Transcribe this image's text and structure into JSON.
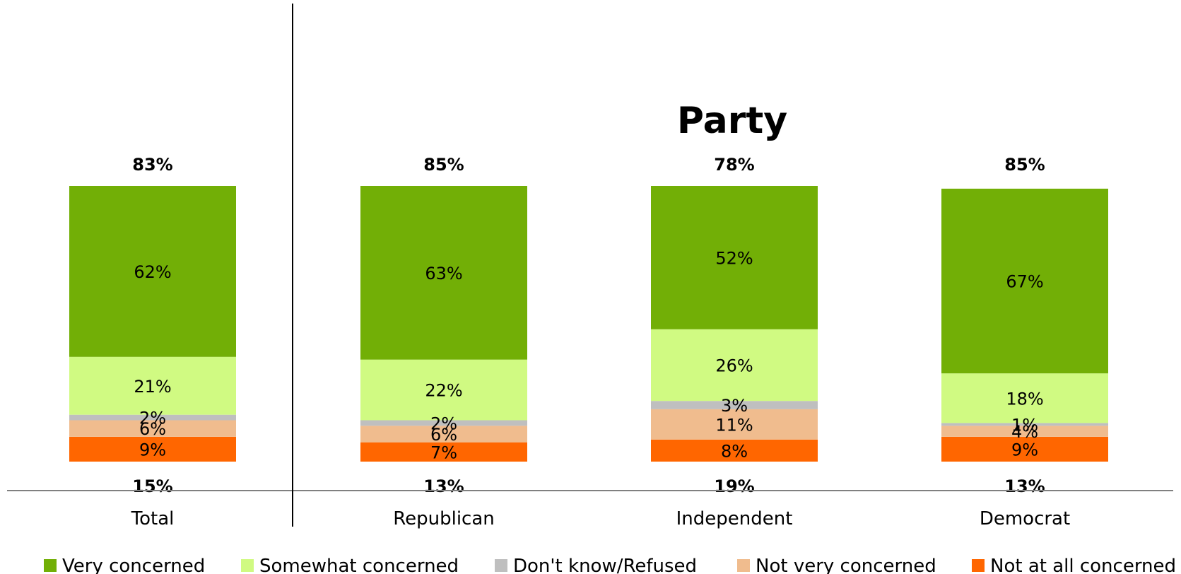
{
  "chart_data": {
    "type": "bar",
    "stacked": true,
    "group_title": "Party",
    "categories": [
      "Total",
      "Republican",
      "Independent",
      "Democrat"
    ],
    "series": [
      {
        "name": "Not at all concerned",
        "color": "#ff6600",
        "values": [
          9,
          7,
          8,
          9
        ],
        "labels": [
          "9%",
          "7%",
          "8%",
          "9%"
        ]
      },
      {
        "name": "Not very concerned",
        "color": "#f0bc8e",
        "values": [
          6,
          6,
          11,
          4
        ],
        "labels": [
          "6%",
          "6%",
          "11%",
          "4%"
        ]
      },
      {
        "name": "Don't know/Refused",
        "color": "#bfbfbf",
        "values": [
          2,
          2,
          3,
          1
        ],
        "labels": [
          "2%",
          "2%",
          "3%",
          "1%"
        ]
      },
      {
        "name": "Somewhat concerned",
        "color": "#d0fa82",
        "values": [
          21,
          22,
          26,
          18
        ],
        "labels": [
          "21%",
          "22%",
          "26%",
          "18%"
        ]
      },
      {
        "name": "Very concerned",
        "color": "#72af06",
        "values": [
          62,
          63,
          52,
          67
        ],
        "labels": [
          "62%",
          "63%",
          "52%",
          "67%"
        ]
      }
    ],
    "concerned_totals": [
      "83%",
      "85%",
      "78%",
      "85%"
    ],
    "not_concerned_totals": [
      "15%",
      "13%",
      "19%",
      "13%"
    ],
    "legend": [
      "Very concerned",
      "Somewhat concerned",
      "Don't know/Refused",
      "Not very concerned",
      "Not at all concerned"
    ],
    "legend_placement": "bottom",
    "ylim": [
      0,
      100
    ],
    "grid": false
  }
}
